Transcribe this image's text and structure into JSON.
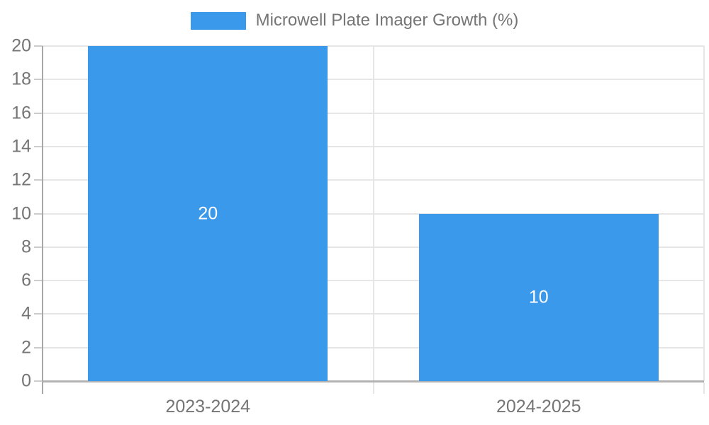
{
  "legend": {
    "label": "Microwell Plate Imager Growth (%)"
  },
  "colors": {
    "bar": "#3B99EC",
    "axis_line": "#a8a8a8",
    "baseline": "#b3b3b3",
    "gridline": "#e6e6e6",
    "tick": "#cccccc",
    "axis_text": "#757575",
    "value_label_text": "#ffffff"
  },
  "chart_data": {
    "type": "bar",
    "categories": [
      "2023-2024",
      "2024-2025"
    ],
    "values": [
      20,
      10
    ],
    "title": "Microwell Plate Imager Growth (%)",
    "xlabel": "",
    "ylabel": "",
    "ylim": [
      0,
      20
    ],
    "ytick_step": 2,
    "yticks": [
      0,
      2,
      4,
      6,
      8,
      10,
      12,
      14,
      16,
      18,
      20
    ],
    "grid": true,
    "legend_position": "top-center",
    "value_labels": "inside-center",
    "value_label_texts": [
      "20",
      "10"
    ]
  }
}
